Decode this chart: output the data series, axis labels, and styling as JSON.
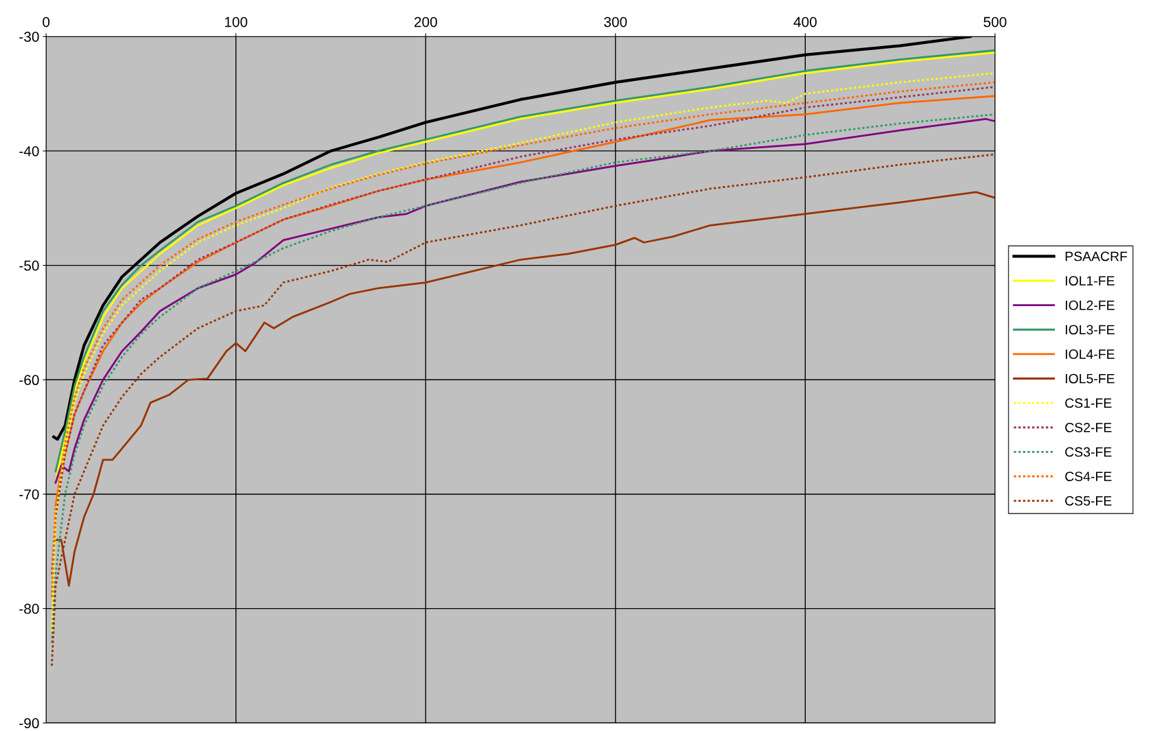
{
  "chart_data": {
    "type": "line",
    "xlim": [
      0,
      500
    ],
    "ylim": [
      -90,
      -30
    ],
    "xticks": [
      0,
      100,
      200,
      300,
      400,
      500
    ],
    "yticks": [
      -90,
      -80,
      -70,
      -60,
      -50,
      -40,
      -30
    ],
    "grid": true,
    "legend": "right",
    "series": [
      {
        "name": "PSAACRF",
        "color": "#000000",
        "line_style": "solid",
        "x": [
          4,
          6,
          10,
          15,
          20,
          30,
          40,
          50,
          60,
          80,
          100,
          125,
          150,
          175,
          200,
          250,
          300,
          350,
          400,
          450,
          487
        ],
        "values": [
          -65,
          -65.2,
          -64,
          -60,
          -57,
          -53.5,
          -51,
          -49.5,
          -48,
          -45.7,
          -43.7,
          -42,
          -40,
          -38.8,
          -37.5,
          -35.5,
          -34,
          -32.8,
          -31.6,
          -30.8,
          -30
        ]
      },
      {
        "name": "IOL1-FE",
        "color": "#ffff00",
        "line_style": "solid",
        "x": [
          5,
          10,
          15,
          20,
          30,
          40,
          50,
          60,
          80,
          100,
          125,
          150,
          175,
          200,
          250,
          300,
          350,
          400,
          450,
          500
        ],
        "values": [
          -69,
          -65,
          -61,
          -58.5,
          -54.5,
          -52,
          -50.5,
          -49,
          -46.5,
          -45,
          -43,
          -41.5,
          -40.2,
          -39.2,
          -37.2,
          -35.8,
          -34.6,
          -33.2,
          -32.2,
          -31.4
        ]
      },
      {
        "name": "IOL2-FE",
        "color": "#800080",
        "line_style": "solid",
        "x": [
          5,
          8,
          12,
          15,
          20,
          30,
          40,
          50,
          60,
          80,
          100,
          110,
          125,
          150,
          175,
          190,
          200,
          250,
          300,
          320,
          350,
          400,
          450,
          495,
          500
        ],
        "values": [
          -69,
          -67.5,
          -68,
          -66,
          -63.5,
          -60,
          -57.5,
          -55.8,
          -54,
          -52,
          -50.8,
          -49.8,
          -47.8,
          -46.8,
          -45.8,
          -45.5,
          -44.8,
          -42.7,
          -41.3,
          -40.8,
          -40,
          -39.4,
          -38.2,
          -37.2,
          -37.4
        ]
      },
      {
        "name": "IOL3-FE",
        "color": "#339966",
        "line_style": "solid",
        "x": [
          5,
          10,
          15,
          20,
          30,
          40,
          50,
          60,
          80,
          100,
          125,
          150,
          175,
          200,
          250,
          300,
          350,
          400,
          450,
          500
        ],
        "values": [
          -68,
          -64.5,
          -60.5,
          -58,
          -54,
          -51.7,
          -50,
          -48.7,
          -46.2,
          -44.8,
          -42.8,
          -41.2,
          -40,
          -39,
          -37,
          -35.6,
          -34.4,
          -33,
          -32,
          -31.2
        ]
      },
      {
        "name": "IOL4-FE",
        "color": "#ff6600",
        "line_style": "solid",
        "x": [
          5,
          10,
          15,
          20,
          30,
          40,
          50,
          60,
          80,
          100,
          125,
          150,
          175,
          200,
          250,
          300,
          350,
          400,
          450,
          500
        ],
        "values": [
          -71,
          -66.5,
          -63,
          -61,
          -57.5,
          -55,
          -53.3,
          -52,
          -49.7,
          -48,
          -46,
          -44.8,
          -43.5,
          -42.5,
          -41,
          -39.2,
          -37.3,
          -36.8,
          -35.8,
          -35.2
        ]
      },
      {
        "name": "IOL5-FE",
        "color": "#993300",
        "line_style": "solid",
        "x": [
          5,
          8,
          10,
          12,
          15,
          20,
          25,
          30,
          35,
          40,
          50,
          55,
          65,
          75,
          85,
          95,
          100,
          105,
          115,
          120,
          130,
          150,
          160,
          175,
          200,
          250,
          275,
          300,
          310,
          315,
          330,
          350,
          400,
          450,
          490,
          500
        ],
        "values": [
          -74,
          -74,
          -76,
          -78,
          -75,
          -72,
          -70,
          -67,
          -67,
          -66,
          -64,
          -62,
          -61.3,
          -60,
          -59.9,
          -57.5,
          -56.8,
          -57.5,
          -55,
          -55.5,
          -54.5,
          -53.2,
          -52.5,
          -52,
          -51.5,
          -49.5,
          -49,
          -48.2,
          -47.6,
          -48,
          -47.5,
          -46.5,
          -45.5,
          -44.5,
          -43.6,
          -44.1
        ]
      },
      {
        "name": "CS1-FE",
        "color": "#ffff00",
        "line_style": "dotted",
        "x": [
          3,
          5,
          10,
          15,
          20,
          30,
          40,
          50,
          60,
          80,
          100,
          125,
          150,
          175,
          200,
          250,
          300,
          350,
          380,
          390,
          400,
          450,
          500
        ],
        "values": [
          -82,
          -72,
          -66,
          -62,
          -59.5,
          -56,
          -53.5,
          -52,
          -50.5,
          -48,
          -46.5,
          -45,
          -43.2,
          -42,
          -41,
          -39.3,
          -37.5,
          -36.2,
          -35.6,
          -35.8,
          -35,
          -34,
          -33.2
        ]
      },
      {
        "name": "CS2-FE",
        "color": "#993366",
        "line_style": "dotted",
        "x": [
          3,
          5,
          10,
          15,
          20,
          30,
          40,
          50,
          60,
          80,
          100,
          125,
          150,
          175,
          200,
          250,
          300,
          350,
          400,
          450,
          500
        ],
        "values": [
          -77,
          -72,
          -66.5,
          -63,
          -61,
          -57,
          -55,
          -53,
          -52,
          -49.5,
          -48,
          -46,
          -44.7,
          -43.5,
          -42.5,
          -40.5,
          -39,
          -37.8,
          -36.2,
          -35.3,
          -34.4
        ]
      },
      {
        "name": "CS3-FE",
        "color": "#339966",
        "line_style": "dotted",
        "x": [
          3,
          5,
          10,
          15,
          20,
          30,
          40,
          50,
          60,
          80,
          100,
          125,
          150,
          175,
          200,
          250,
          300,
          350,
          400,
          450,
          500
        ],
        "values": [
          -83,
          -77,
          -70,
          -66.5,
          -64,
          -60.5,
          -58,
          -56,
          -54.5,
          -52,
          -50.5,
          -48.5,
          -47,
          -45.8,
          -44.8,
          -42.8,
          -41,
          -40,
          -38.6,
          -37.6,
          -36.8
        ]
      },
      {
        "name": "CS4-FE",
        "color": "#ff6600",
        "line_style": "dotted",
        "x": [
          3,
          5,
          10,
          15,
          20,
          30,
          40,
          50,
          60,
          80,
          100,
          125,
          150,
          175,
          200,
          250,
          300,
          350,
          400,
          450,
          500
        ],
        "values": [
          -79,
          -71,
          -65.5,
          -61.5,
          -59,
          -55.5,
          -53,
          -51.5,
          -50,
          -47.7,
          -46.2,
          -44.7,
          -43.3,
          -42.1,
          -41.1,
          -39.5,
          -38,
          -36.8,
          -35.8,
          -34.8,
          -34
        ]
      },
      {
        "name": "CS5-FE",
        "color": "#993300",
        "line_style": "dotted",
        "x": [
          3,
          5,
          10,
          15,
          20,
          30,
          40,
          50,
          60,
          80,
          100,
          115,
          125,
          150,
          170,
          180,
          200,
          250,
          300,
          350,
          400,
          450,
          500
        ],
        "values": [
          -85,
          -78,
          -74,
          -70,
          -68,
          -64,
          -61.5,
          -59.5,
          -58,
          -55.5,
          -54,
          -53.5,
          -51.5,
          -50.5,
          -49.5,
          -49.7,
          -48,
          -46.5,
          -44.8,
          -43.3,
          -42.3,
          -41.2,
          -40.3
        ]
      }
    ]
  }
}
